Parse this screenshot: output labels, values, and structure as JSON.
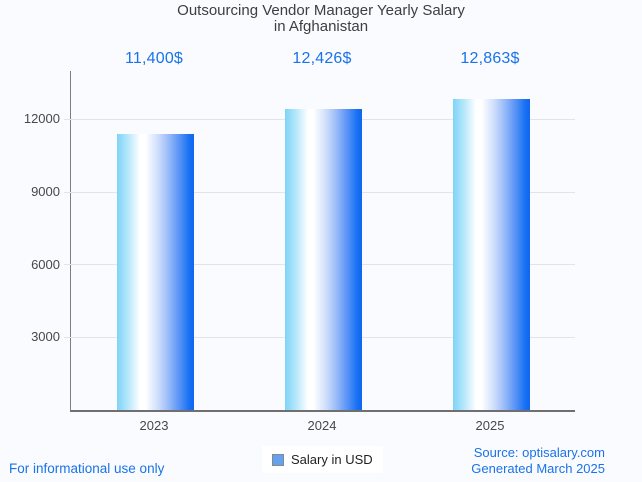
{
  "page": {
    "background": "#fafbfe",
    "accent_blue": "#1a73e8",
    "grid_color": "#e2e4e8",
    "axis_color": "#6f6f6f"
  },
  "title": {
    "line1": "Outsourcing Vendor Manager Yearly Salary",
    "line2": "in Afghanistan"
  },
  "legend": {
    "label": "Salary in USD",
    "swatch_color": "#64a2ee"
  },
  "footer": {
    "left_note": "For informational use only",
    "source": "Source: optisalary.com",
    "generated": "Generated March 2025"
  },
  "chart_data": {
    "type": "bar",
    "title": "Outsourcing Vendor Manager Yearly Salary in Afghanistan",
    "categories": [
      "2023",
      "2024",
      "2025"
    ],
    "series": [
      {
        "name": "Salary in USD",
        "values": [
          11400,
          12426,
          12863
        ]
      }
    ],
    "annotations": [
      "11,400$",
      "12,426$",
      "12,863$"
    ],
    "xlabel": "",
    "ylabel": "",
    "ylim": [
      0,
      14000
    ],
    "yticks": [
      3000,
      6000,
      9000,
      12000
    ],
    "grid": true,
    "legend_position": "bottom",
    "bar_gradient": [
      "#7ed3f7",
      "#ffffff",
      "#1064ef"
    ]
  }
}
